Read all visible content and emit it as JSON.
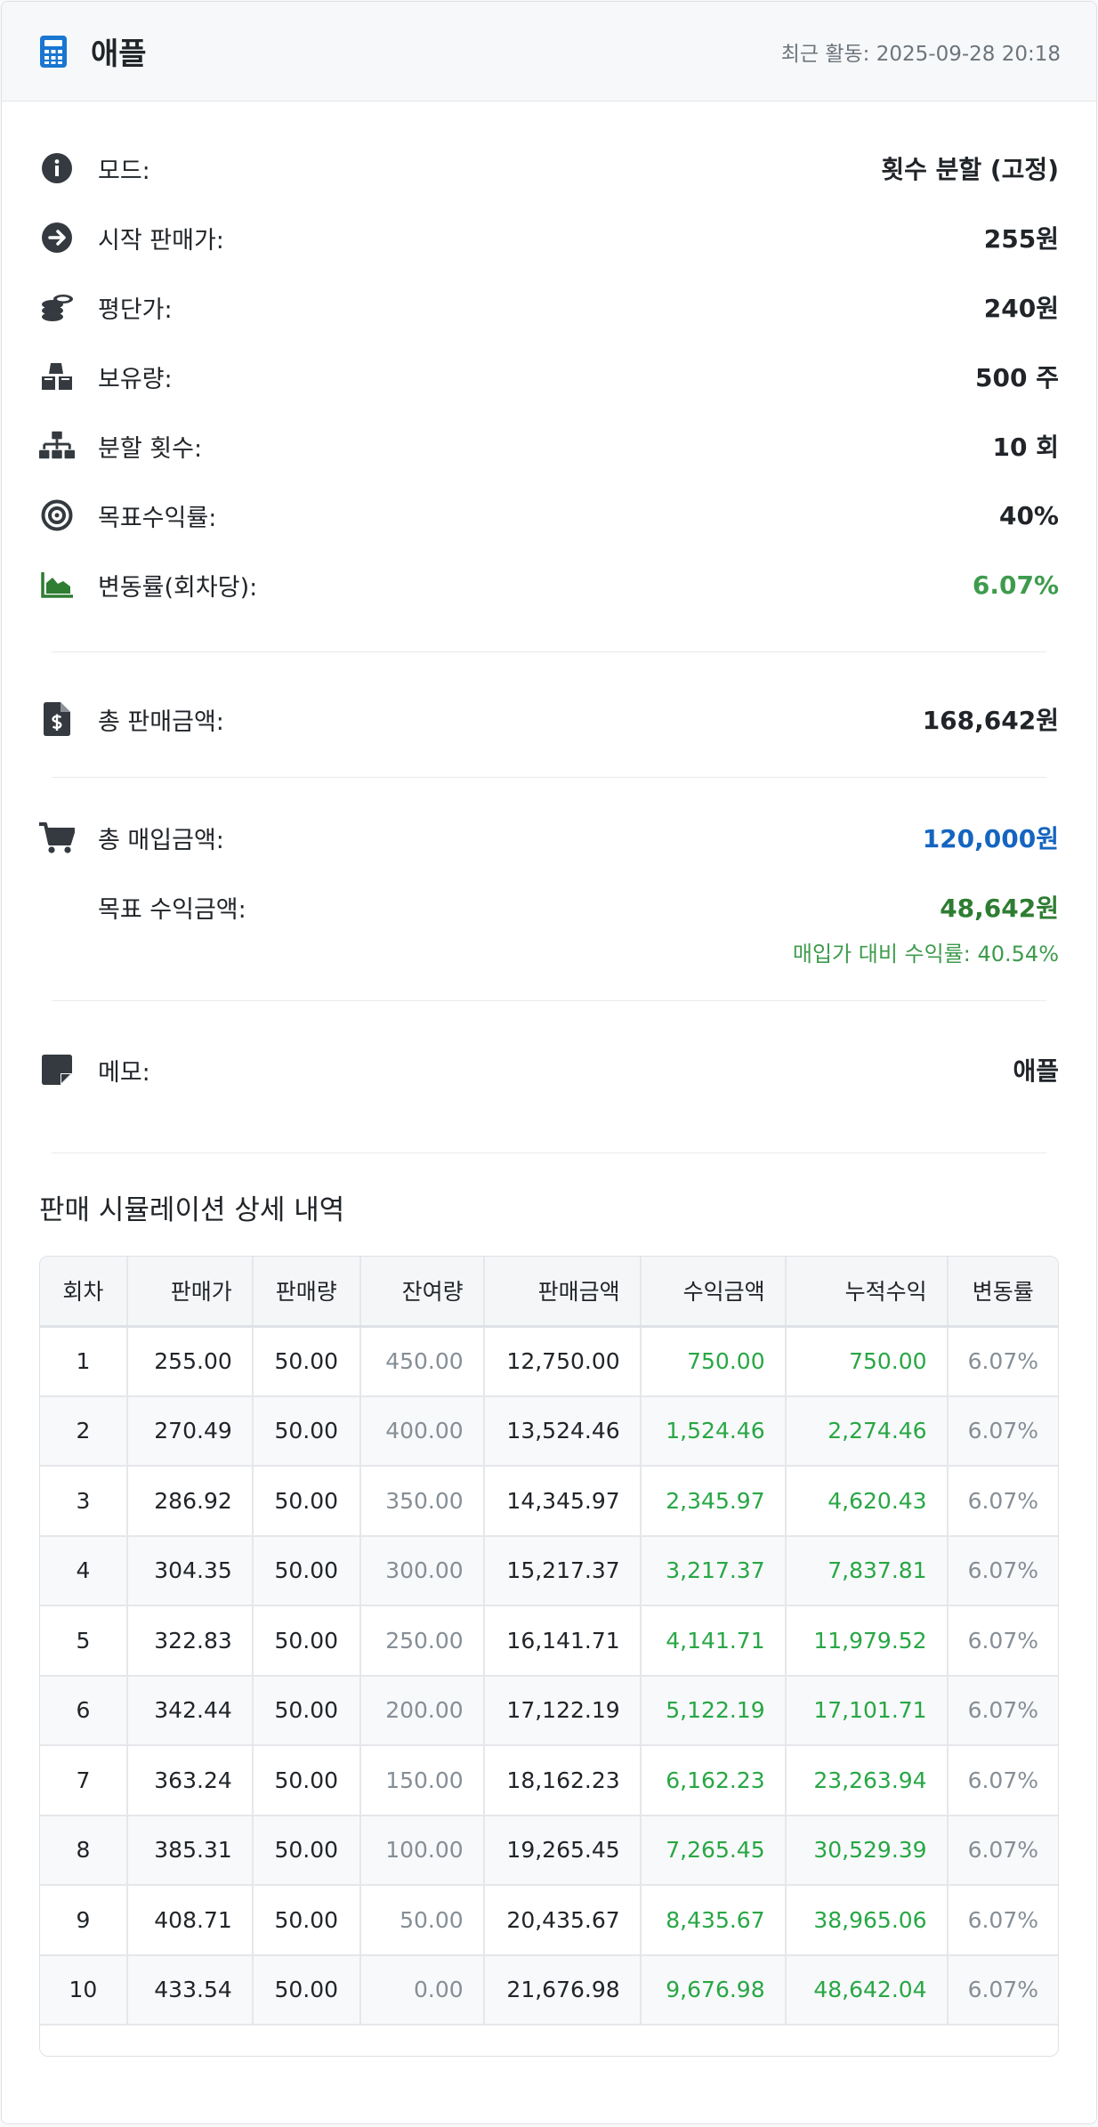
{
  "header": {
    "title": "애플",
    "activity_label": "최근 활동:",
    "activity_time": "2025-09-28 20:18"
  },
  "summary": [
    {
      "icon": "info-icon",
      "label": "모드:",
      "value": "횟수 분할 (고정)"
    },
    {
      "icon": "arrow-circle-right-icon",
      "label": "시작 판매가:",
      "value": "255원"
    },
    {
      "icon": "coins-icon",
      "label": "평단가:",
      "value": "240원"
    },
    {
      "icon": "cubes-icon",
      "label": "보유량:",
      "value": "500 주"
    },
    {
      "icon": "sitemap-icon",
      "label": "분할 횟수:",
      "value": "10 회"
    },
    {
      "icon": "target-icon",
      "label": "목표수익률:",
      "value": "40%"
    },
    {
      "icon": "area-chart-icon",
      "label": "변동률(회차당):",
      "value": "6.07%"
    }
  ],
  "total_sales": {
    "label": "총 판매금액:",
    "value": "168,642원"
  },
  "total_purchase": {
    "label": "총 매입금액:",
    "value": "120,000원"
  },
  "target_profit": {
    "label": "목표 수익금액:",
    "value": "48,642원",
    "note": "매입가 대비 수익률: 40.54%"
  },
  "memo": {
    "label": "메모:",
    "value": "애플"
  },
  "table": {
    "title": "판매 시뮬레이션 상세 내역",
    "headers": [
      "회차",
      "판매가",
      "판매량",
      "잔여량",
      "판매금액",
      "수익금액",
      "누적수익",
      "변동률"
    ],
    "rows": [
      [
        "1",
        "255.00",
        "50.00",
        "450.00",
        "12,750.00",
        "750.00",
        "750.00",
        "6.07%"
      ],
      [
        "2",
        "270.49",
        "50.00",
        "400.00",
        "13,524.46",
        "1,524.46",
        "2,274.46",
        "6.07%"
      ],
      [
        "3",
        "286.92",
        "50.00",
        "350.00",
        "14,345.97",
        "2,345.97",
        "4,620.43",
        "6.07%"
      ],
      [
        "4",
        "304.35",
        "50.00",
        "300.00",
        "15,217.37",
        "3,217.37",
        "7,837.81",
        "6.07%"
      ],
      [
        "5",
        "322.83",
        "50.00",
        "250.00",
        "16,141.71",
        "4,141.71",
        "11,979.52",
        "6.07%"
      ],
      [
        "6",
        "342.44",
        "50.00",
        "200.00",
        "17,122.19",
        "5,122.19",
        "17,101.71",
        "6.07%"
      ],
      [
        "7",
        "363.24",
        "50.00",
        "150.00",
        "18,162.23",
        "6,162.23",
        "23,263.94",
        "6.07%"
      ],
      [
        "8",
        "385.31",
        "50.00",
        "100.00",
        "19,265.45",
        "7,265.45",
        "30,529.39",
        "6.07%"
      ],
      [
        "9",
        "408.71",
        "50.00",
        "50.00",
        "20,435.67",
        "8,435.67",
        "38,965.06",
        "6.07%"
      ],
      [
        "10",
        "433.54",
        "50.00",
        "0.00",
        "21,676.98",
        "9,676.98",
        "48,642.04",
        "6.07%"
      ]
    ]
  },
  "colors": {
    "accent": "#1976d2",
    "positive": "#28a745",
    "purchase": "#1565c0"
  }
}
